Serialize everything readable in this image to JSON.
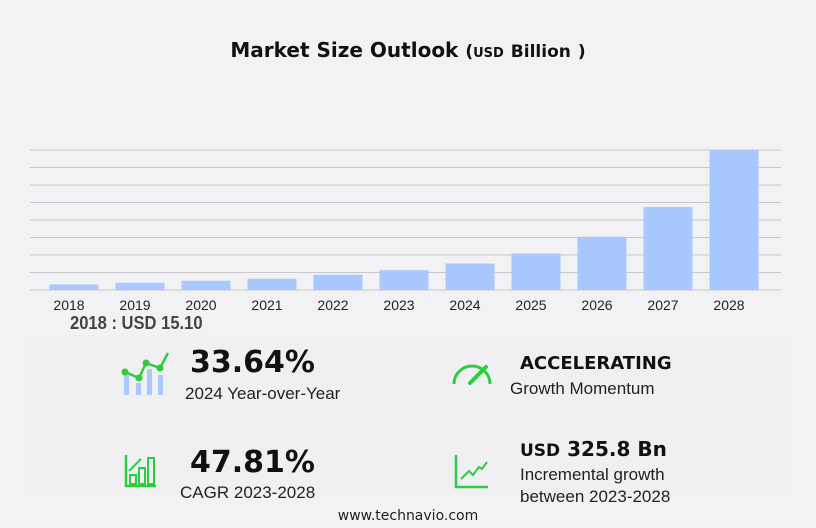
{
  "title": {
    "main": "Market Size Outlook",
    "paren_open": "(",
    "unit_small": "USD",
    "unit": "Billion",
    "paren_close": ")"
  },
  "chart_data": {
    "type": "bar",
    "categories": [
      "2018",
      "2019",
      "2020",
      "2021",
      "2022",
      "2023",
      "2024",
      "2025",
      "2026",
      "2027",
      "2028"
    ],
    "values": [
      15.1,
      19.7,
      25.2,
      30.6,
      41.4,
      53.8,
      71.8,
      99.3,
      144.2,
      225.4,
      379.6
    ],
    "ylim": [
      0,
      380
    ],
    "grid": true,
    "bar_color": "#a8c8ff",
    "xlabel": "",
    "ylabel": ""
  },
  "first_value": "2018 : USD  15.10",
  "kpis": {
    "yoy": {
      "value": "33.64%",
      "label": "2024 Year-over-Year"
    },
    "momentum": {
      "value": "ACCELERATING",
      "label": "Growth Momentum"
    },
    "cagr": {
      "value": "47.81%",
      "label_a": "CAGR",
      "label_b": "2023-2028"
    },
    "incremental": {
      "prefix": "USD",
      "value": "325.8 Bn",
      "label1": "Incremental growth",
      "label2": "between 2023-2028"
    }
  },
  "accent_color": "#2ecc40",
  "footer": "www.technavio.com"
}
